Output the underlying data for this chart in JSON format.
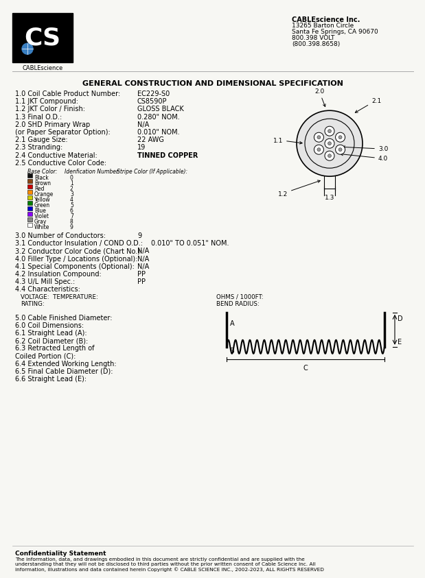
{
  "bg_color": "#f7f7f3",
  "company_name": "CABLEscience Inc.",
  "company_address": [
    "13265 Barton Circle",
    "Santa Fe Springs, CA 90670",
    "800.398 VOLT",
    "(800.398.8658)"
  ],
  "title": "GENERAL CONSTRUCTION AND DIMENSIONAL SPECIFICATION",
  "specs": [
    [
      "1.0 Coil Cable Product Number:",
      "EC229-S0"
    ],
    [
      "1.1 JKT Compound:",
      "CS8590P"
    ],
    [
      "1.2 JKT Color / Finish:",
      "GLOSS BLACK"
    ],
    [
      "1.3 Final O.D.:",
      "0.280\" NOM."
    ],
    [
      "2.0 SHD Primary Wrap",
      "N/A"
    ],
    [
      "(or Paper Separator Option):",
      "0.010\" NOM."
    ],
    [
      "2.1 Gauge Size:",
      "22 AWG"
    ],
    [
      "2.3 Stranding:",
      "19"
    ],
    [
      "2.4 Conductive Material:",
      "TINNED COPPER"
    ],
    [
      "2.5 Conductive Color Code:",
      ""
    ]
  ],
  "color_code_headers": [
    "Base Color:",
    "Idenfication Number:",
    "Stripe Color (If Applicable):"
  ],
  "color_codes": [
    [
      "Black",
      "0",
      "#111111"
    ],
    [
      "Brown",
      "1",
      "#8B4513"
    ],
    [
      "Red",
      "2",
      "#cc0000"
    ],
    [
      "Orange",
      "3",
      "#FF8C00"
    ],
    [
      "Yellow",
      "4",
      "#cccc00"
    ],
    [
      "Green",
      "5",
      "#008000"
    ],
    [
      "Blue",
      "6",
      "#0000cc"
    ],
    [
      "Violet",
      "7",
      "#8B00FF"
    ],
    [
      "Gray",
      "8",
      "#888888"
    ],
    [
      "White",
      "9",
      "#ffffff"
    ]
  ],
  "specs2": [
    [
      "3.0 Number of Conductors:",
      "9"
    ],
    [
      "3.1 Conductor Insulation / COND O.D.:",
      "0.010\" TO 0.051\" NOM."
    ],
    [
      "3.2 Conductor Color Code (Chart No.):",
      "N/A"
    ],
    [
      "4.0 Filler Type / Locations (Optional):",
      "N/A"
    ],
    [
      "4.1 Special Components (Optional):",
      "N/A"
    ],
    [
      "4.2 Insulation Compound:",
      "PP"
    ],
    [
      "4.3 U/L Mill Spec.:",
      "PP"
    ],
    [
      "4.4 Characteristics:",
      ""
    ]
  ],
  "voltage_line": "VOLTAGE:  TEMPERATURE:",
  "rating_line": "RATING:",
  "ohms_line": "OHMS / 1000FT:",
  "bend_line": "BEND RADIUS:",
  "specs3": [
    [
      "5.0 Cable Finished Diameter:",
      ""
    ],
    [
      "6.0 Coil Dimensions:",
      ""
    ],
    [
      "6.1 Straight Lead (A):",
      ""
    ],
    [
      "6.2 Coil Diameter (B):",
      ""
    ],
    [
      "6.3 Retracted Length of",
      ""
    ],
    [
      "Coiled Portion (C):",
      ""
    ],
    [
      "6.4 Extended Working Length:",
      ""
    ],
    [
      "6.5 Final Cable Diameter (D):",
      ""
    ],
    [
      "6.6 Straight Lead (E):",
      ""
    ]
  ],
  "confidentiality": "Confidentiality Statement",
  "confidentiality_text": "The information, data, and drawings embodied in this document are strictly confidential and are supplied with the\nunderstanding that they will not be disclosed to third parties without the prior written consent of Cable Science Inc. All\ninformation, illustrations and data contained herein Copyright © CABLE SCIENCE INC., 2002-2023, ALL RIGHTS RESERVED"
}
